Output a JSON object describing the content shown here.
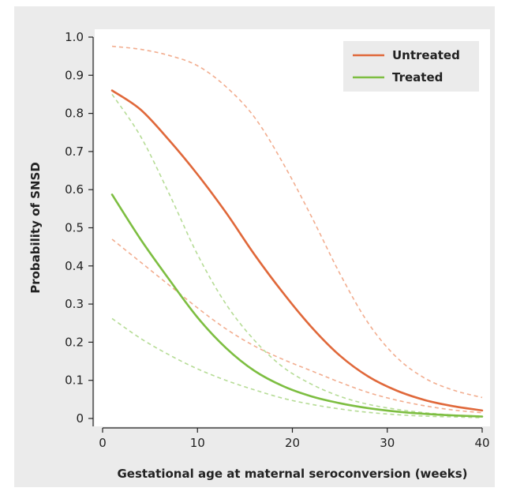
{
  "chart_data": {
    "type": "line",
    "xlabel": "Gestational age at maternal seroconversion (weeks)",
    "ylabel": "Probability of SNSD",
    "xlim": [
      0,
      40
    ],
    "ylim": [
      0,
      1.0
    ],
    "x_ticks": [
      0,
      10,
      20,
      30,
      40
    ],
    "y_ticks": [
      0,
      0.1,
      0.2,
      0.3,
      0.4,
      0.5,
      0.6,
      0.7,
      0.8,
      0.9,
      1.0
    ],
    "x_tick_labels": [
      "0",
      "10",
      "20",
      "30",
      "40"
    ],
    "y_tick_labels": [
      "0",
      "0.1",
      "0.2",
      "0.3",
      "0.4",
      "0.5",
      "0.6",
      "0.7",
      "0.8",
      "0.9",
      "1.0"
    ],
    "grid": false,
    "legend": {
      "placement": "top-right"
    },
    "x": [
      1,
      4,
      7,
      10,
      13,
      16,
      19,
      22,
      25,
      28,
      31,
      34,
      37,
      40
    ],
    "series": [
      {
        "name": "Untreated",
        "color": "#e0683a",
        "style": "solid",
        "values": [
          0.86,
          0.81,
          0.73,
          0.64,
          0.54,
          0.43,
          0.33,
          0.24,
          0.165,
          0.11,
          0.073,
          0.048,
          0.032,
          0.021
        ]
      },
      {
        "name": "Treated",
        "color": "#7dbe41",
        "style": "solid",
        "values": [
          0.587,
          0.47,
          0.365,
          0.265,
          0.185,
          0.125,
          0.085,
          0.058,
          0.04,
          0.027,
          0.018,
          0.012,
          0.008,
          0.005
        ]
      }
    ],
    "confidence_bands": [
      {
        "of": "Untreated",
        "color": "#f2ad8f",
        "style": "dashed",
        "upper": [
          0.976,
          0.968,
          0.952,
          0.925,
          0.87,
          0.79,
          0.67,
          0.53,
          0.38,
          0.25,
          0.16,
          0.105,
          0.074,
          0.055
        ],
        "lower": [
          0.47,
          0.41,
          0.35,
          0.29,
          0.235,
          0.19,
          0.155,
          0.125,
          0.095,
          0.068,
          0.048,
          0.033,
          0.022,
          0.015
        ]
      },
      {
        "of": "Treated",
        "color": "#b6dc96",
        "style": "dashed",
        "upper": [
          0.85,
          0.74,
          0.59,
          0.43,
          0.3,
          0.205,
          0.135,
          0.09,
          0.058,
          0.037,
          0.024,
          0.015,
          0.009,
          0.006
        ],
        "lower": [
          0.262,
          0.21,
          0.167,
          0.13,
          0.1,
          0.075,
          0.053,
          0.037,
          0.025,
          0.016,
          0.01,
          0.006,
          0.004,
          0.002
        ]
      }
    ]
  }
}
